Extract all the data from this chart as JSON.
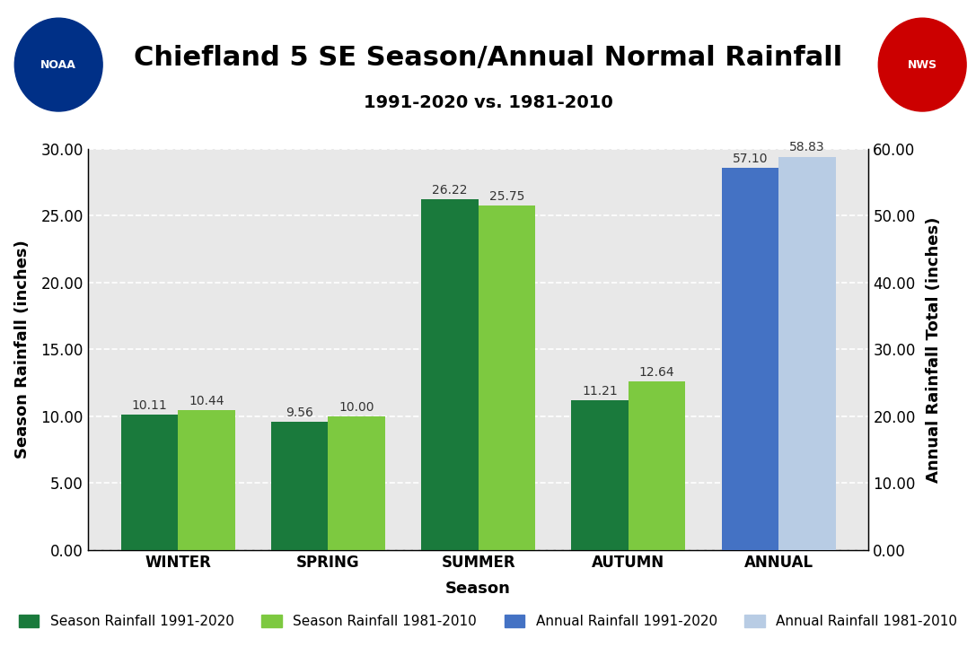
{
  "title": "Chiefland 5 SE Season/Annual Normal Rainfall",
  "subtitle": "1991-2020 vs. 1981-2010",
  "xlabel": "Season",
  "ylabel_left": "Season Rainfall (inches)",
  "ylabel_right": "Annual Rainfall Total (inches)",
  "seasons": [
    "WINTER",
    "SPRING",
    "SUMMER",
    "AUTUMN"
  ],
  "season_1991_2020": [
    10.11,
    9.56,
    26.22,
    11.21
  ],
  "season_1981_2010": [
    10.44,
    10.0,
    25.75,
    12.64
  ],
  "annual_1991_2020": 57.1,
  "annual_1981_2010": 58.83,
  "color_season_1991_2020": "#1a7a3c",
  "color_season_1981_2010": "#7dc940",
  "color_annual_1991_2020": "#4472c4",
  "color_annual_1981_2010": "#b8cce4",
  "ylim_left": [
    0,
    30
  ],
  "ylim_right": [
    0,
    60
  ],
  "yticks_left": [
    0.0,
    5.0,
    10.0,
    15.0,
    20.0,
    25.0,
    30.0
  ],
  "yticks_right": [
    0.0,
    10.0,
    20.0,
    30.0,
    40.0,
    50.0,
    60.0
  ],
  "plot_bg_color": "#e8e8e8",
  "fig_bg_color": "#ffffff",
  "bar_width": 0.38,
  "legend_labels": [
    "Season Rainfall 1991-2020",
    "Season Rainfall 1981-2010",
    "Annual Rainfall 1991-2020",
    "Annual Rainfall 1981-2010"
  ],
  "grid_color": "#ffffff",
  "grid_linewidth": 1.2,
  "title_fontsize": 22,
  "subtitle_fontsize": 14,
  "axis_label_fontsize": 13,
  "tick_fontsize": 12,
  "bar_label_fontsize": 10,
  "legend_fontsize": 11
}
